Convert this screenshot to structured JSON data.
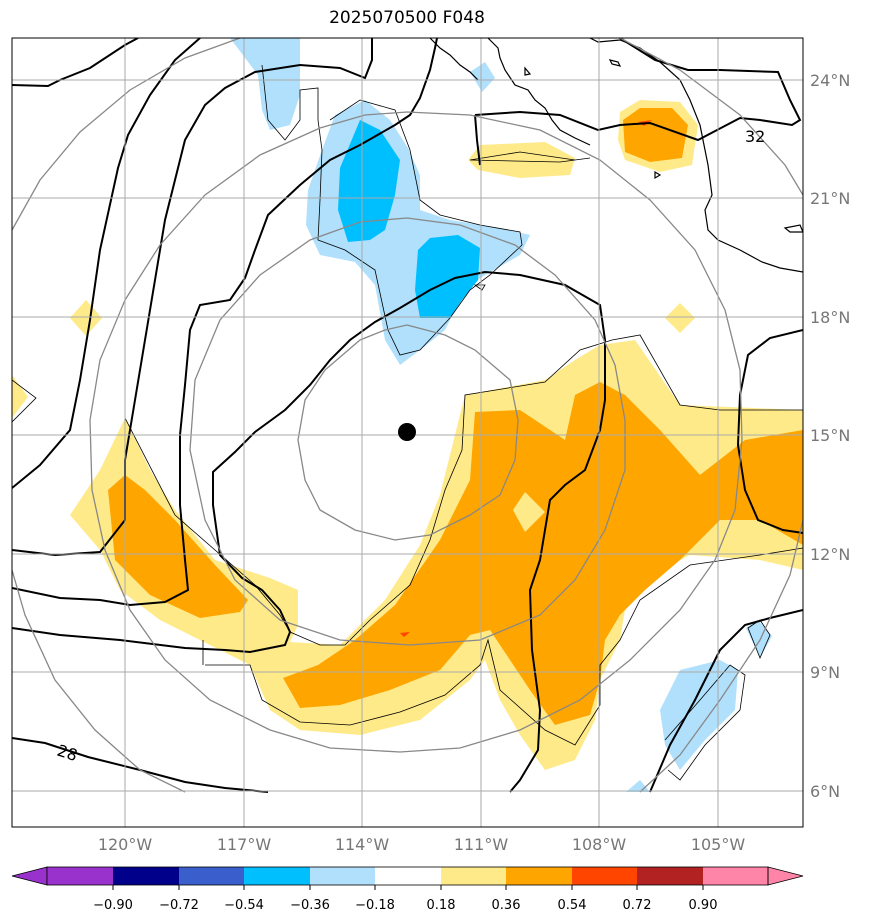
{
  "title": "2025070500 F048",
  "map": {
    "longitude_ticks": [
      "120°W",
      "117°W",
      "114°W",
      "111°W",
      "108°W",
      "105°W"
    ],
    "latitude_ticks": [
      "24°N",
      "21°N",
      "18°N",
      "15°N",
      "12°N",
      "9°N",
      "6°N"
    ],
    "contour_labels": [
      "32",
      "28"
    ],
    "storm_center": "black-dot",
    "colors": {
      "light_blue": "#b0e0fb",
      "cyan": "#00bfff",
      "light_yellow": "#ffea8a",
      "orange": "#ffa500",
      "red_orange": "#ff4500"
    }
  },
  "colorbar": {
    "labels": [
      "−0.90",
      "−0.72",
      "−0.54",
      "−0.36",
      "−0.18",
      "0.18",
      "0.36",
      "0.54",
      "0.72",
      "0.90"
    ],
    "colors": [
      "#9932cc",
      "#00008b",
      "#3a5fcd",
      "#00bfff",
      "#b0e0fb",
      "#ffffff",
      "#ffea8a",
      "#ffa500",
      "#ff4500",
      "#b22222",
      "#ff85a8",
      "#ff85a8"
    ]
  }
}
